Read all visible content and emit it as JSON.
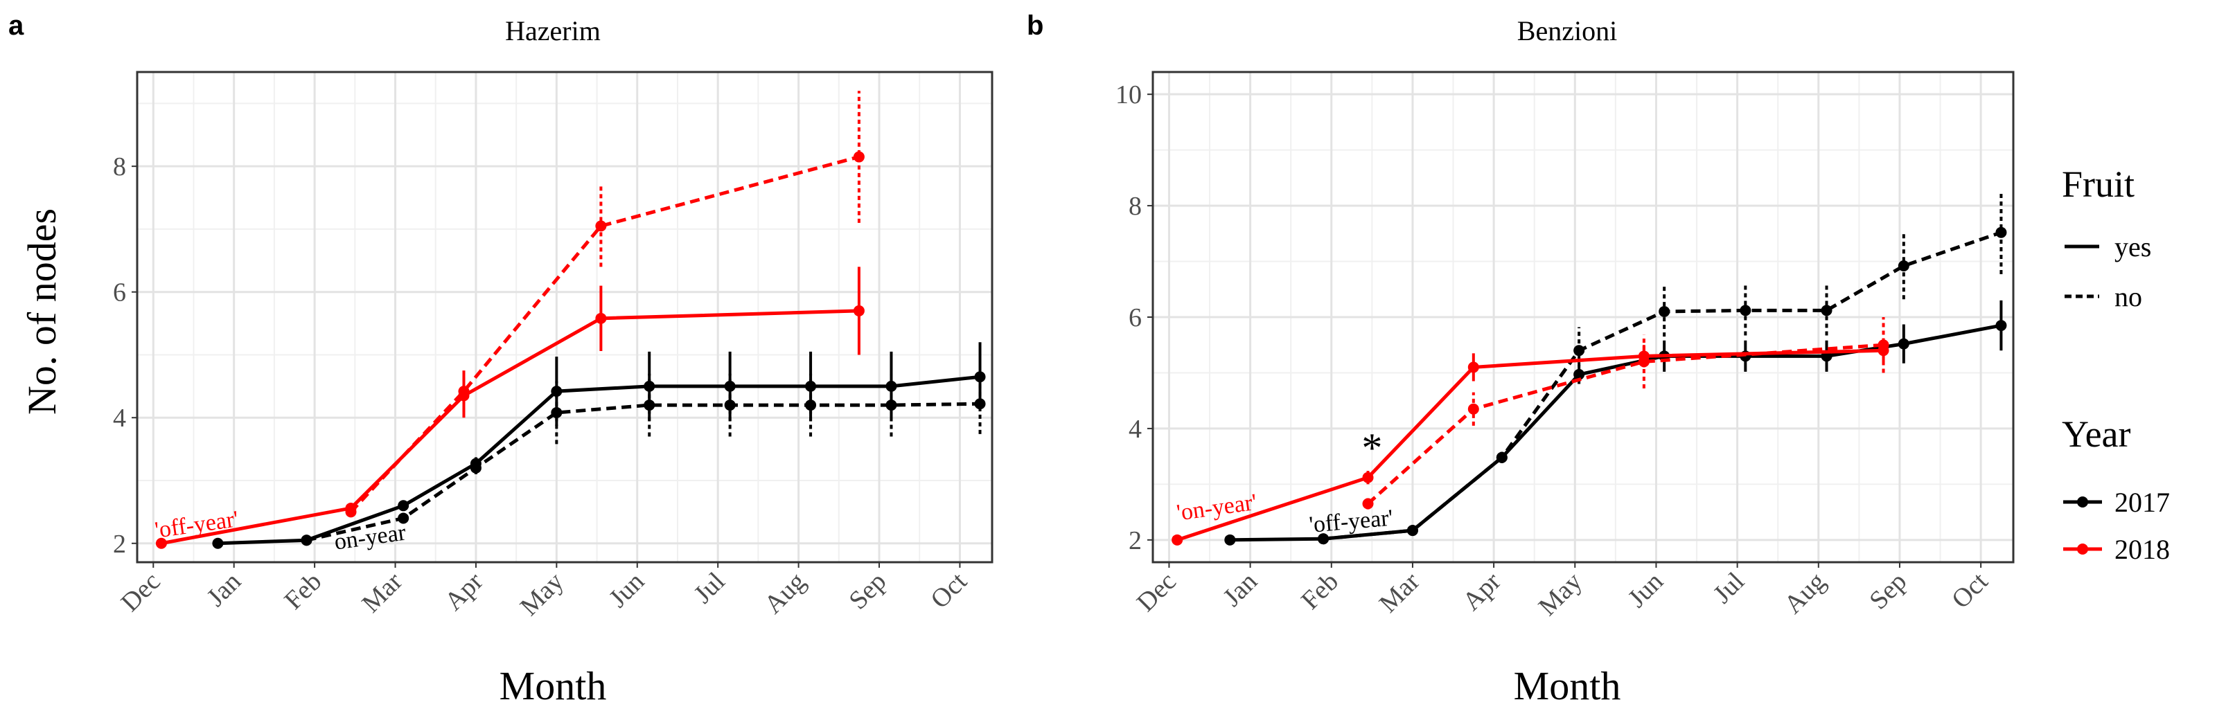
{
  "figure": {
    "panels": [
      "a",
      "b"
    ],
    "ylabel": "No. of nodes",
    "xlabel": "Month",
    "legend": {
      "fruit_title": "Fruit",
      "fruit_items": [
        {
          "label": "yes",
          "dash": "solid"
        },
        {
          "label": "no",
          "dash": "dashed"
        }
      ],
      "year_title": "Year",
      "year_items": [
        {
          "label": "2017",
          "color": "#000000"
        },
        {
          "label": "2018",
          "color": "#ff0000"
        }
      ]
    }
  },
  "chart_data": [
    {
      "type": "line",
      "panel": "a",
      "title": "Hazerim",
      "xlabel": "Month",
      "ylabel": "No. of nodes",
      "x_ticks": [
        "Dec",
        "Jan",
        "Feb",
        "Mar",
        "Apr",
        "May",
        "Jun",
        "Jul",
        "Aug",
        "Sep",
        "Oct"
      ],
      "xlim": [
        -0.2,
        10.4
      ],
      "ylim": [
        1.7,
        9.5
      ],
      "y_ticks": [
        2,
        4,
        6,
        8
      ],
      "grid": true,
      "annotations": [
        {
          "text": "'off-year'",
          "x": 0.55,
          "y": 2.18,
          "color": "#ff0000",
          "rotate": -8
        },
        {
          "text": "on-year",
          "x": 2.7,
          "y": 1.98,
          "color": "#000000",
          "rotate": -8
        }
      ],
      "series": [
        {
          "name": "2017 yes",
          "year": "2017",
          "fruit": "yes",
          "color": "#000000",
          "dash": "solid",
          "points": [
            {
              "x": 0.8,
              "y": 2.0
            },
            {
              "x": 1.9,
              "y": 2.05,
              "err": 0.02
            },
            {
              "x": 3.1,
              "y": 2.6,
              "err": 0.05
            },
            {
              "x": 4.0,
              "y": 3.27,
              "err": 0.1
            },
            {
              "x": 5.0,
              "y": 4.42,
              "err": 0.55
            },
            {
              "x": 6.15,
              "y": 4.5,
              "err": 0.55
            },
            {
              "x": 7.15,
              "y": 4.5,
              "err": 0.55
            },
            {
              "x": 8.15,
              "y": 4.5,
              "err": 0.55
            },
            {
              "x": 9.15,
              "y": 4.5,
              "err": 0.55
            },
            {
              "x": 10.25,
              "y": 4.65,
              "err": 0.55
            }
          ]
        },
        {
          "name": "2017 no",
          "year": "2017",
          "fruit": "no",
          "color": "#000000",
          "dash": "dashed",
          "points": [
            {
              "x": 1.9,
              "y": 2.05,
              "err": 0.02
            },
            {
              "x": 3.1,
              "y": 2.4,
              "err": 0.05
            },
            {
              "x": 4.0,
              "y": 3.2,
              "err": 0.1
            },
            {
              "x": 5.0,
              "y": 4.08,
              "err": 0.5
            },
            {
              "x": 6.15,
              "y": 4.2,
              "err": 0.5
            },
            {
              "x": 7.15,
              "y": 4.2,
              "err": 0.5
            },
            {
              "x": 8.15,
              "y": 4.2,
              "err": 0.5
            },
            {
              "x": 9.15,
              "y": 4.2,
              "err": 0.5
            },
            {
              "x": 10.25,
              "y": 4.22,
              "err": 0.48
            }
          ]
        },
        {
          "name": "2018 yes",
          "year": "2018",
          "fruit": "yes",
          "color": "#ff0000",
          "dash": "solid",
          "points": [
            {
              "x": 0.1,
              "y": 2.0
            },
            {
              "x": 2.45,
              "y": 2.56,
              "err": 0.08
            },
            {
              "x": 3.85,
              "y": 4.35,
              "err": 0.35
            },
            {
              "x": 5.55,
              "y": 5.58,
              "err": 0.52
            },
            {
              "x": 8.75,
              "y": 5.7,
              "err": 0.7
            }
          ]
        },
        {
          "name": "2018 no",
          "year": "2018",
          "fruit": "no",
          "color": "#ff0000",
          "dash": "dashed",
          "points": [
            {
              "x": 2.45,
              "y": 2.5,
              "err": 0.08
            },
            {
              "x": 3.85,
              "y": 4.42,
              "err": 0.33
            },
            {
              "x": 5.55,
              "y": 7.05,
              "err": 0.65
            },
            {
              "x": 8.75,
              "y": 8.15,
              "err": 1.05
            }
          ]
        }
      ]
    },
    {
      "type": "line",
      "panel": "b",
      "title": "Benzioni",
      "xlabel": "Month",
      "ylabel": "",
      "x_ticks": [
        "Dec",
        "Jan",
        "Feb",
        "Mar",
        "Apr",
        "May",
        "Jun",
        "Jul",
        "Aug",
        "Sep",
        "Oct"
      ],
      "xlim": [
        -0.2,
        10.4
      ],
      "ylim": [
        1.6,
        10.4
      ],
      "y_ticks": [
        2,
        4,
        6,
        8,
        10
      ],
      "grid": true,
      "annotations": [
        {
          "text": "'on-year'",
          "x": 0.6,
          "y": 2.45,
          "color": "#ff0000",
          "rotate": -8
        },
        {
          "text": "'off-year'",
          "x": 2.25,
          "y": 2.2,
          "color": "#000000",
          "rotate": -5
        },
        {
          "text": "*",
          "x": 2.5,
          "y": 3.4,
          "color": "#000000",
          "rotate": 0
        }
      ],
      "series": [
        {
          "name": "2017 yes",
          "year": "2017",
          "fruit": "yes",
          "color": "#000000",
          "dash": "solid",
          "points": [
            {
              "x": 0.75,
              "y": 2.0
            },
            {
              "x": 1.9,
              "y": 2.02,
              "err": 0.03
            },
            {
              "x": 3.0,
              "y": 2.17,
              "err": 0.05
            },
            {
              "x": 4.1,
              "y": 3.48,
              "err": 0.1
            },
            {
              "x": 5.05,
              "y": 4.97,
              "err": 0.17
            },
            {
              "x": 6.1,
              "y": 5.3,
              "err": 0.28
            },
            {
              "x": 7.1,
              "y": 5.3,
              "err": 0.28
            },
            {
              "x": 8.1,
              "y": 5.3,
              "err": 0.28
            },
            {
              "x": 9.05,
              "y": 5.52,
              "err": 0.35
            },
            {
              "x": 10.25,
              "y": 5.85,
              "err": 0.45
            }
          ]
        },
        {
          "name": "2017 no",
          "year": "2017",
          "fruit": "no",
          "color": "#000000",
          "dash": "dashed",
          "points": [
            {
              "x": 1.9,
              "y": 2.02,
              "err": 0.03
            },
            {
              "x": 3.0,
              "y": 2.17,
              "err": 0.05
            },
            {
              "x": 4.1,
              "y": 3.48,
              "err": 0.1
            },
            {
              "x": 5.05,
              "y": 5.4,
              "err": 0.42
            },
            {
              "x": 6.1,
              "y": 6.1,
              "err": 0.45
            },
            {
              "x": 7.1,
              "y": 6.12,
              "err": 0.45
            },
            {
              "x": 8.1,
              "y": 6.12,
              "err": 0.45
            },
            {
              "x": 9.05,
              "y": 6.92,
              "err": 0.6
            },
            {
              "x": 10.25,
              "y": 7.52,
              "err": 0.75
            }
          ]
        },
        {
          "name": "2018 yes",
          "year": "2018",
          "fruit": "yes",
          "color": "#ff0000",
          "dash": "solid",
          "points": [
            {
              "x": 0.1,
              "y": 2.0
            },
            {
              "x": 2.45,
              "y": 3.12,
              "err": 0.12
            },
            {
              "x": 3.75,
              "y": 5.1,
              "err": 0.25
            },
            {
              "x": 5.85,
              "y": 5.3,
              "err": 0.2
            },
            {
              "x": 8.8,
              "y": 5.4,
              "err": 0.2
            }
          ]
        },
        {
          "name": "2018 no",
          "year": "2018",
          "fruit": "no",
          "color": "#ff0000",
          "dash": "dashed",
          "points": [
            {
              "x": 2.45,
              "y": 2.65,
              "err": 0.1
            },
            {
              "x": 3.75,
              "y": 4.35,
              "err": 0.3
            },
            {
              "x": 5.85,
              "y": 5.2,
              "err": 0.48
            },
            {
              "x": 8.8,
              "y": 5.5,
              "err": 0.5
            }
          ]
        }
      ]
    }
  ]
}
